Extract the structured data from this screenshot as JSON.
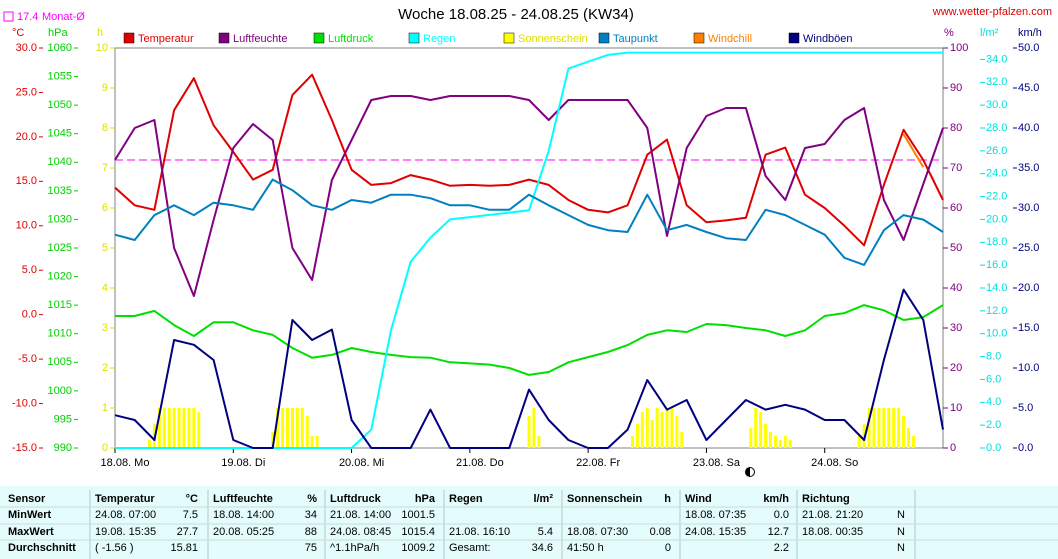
{
  "chart_data": {
    "type": "line",
    "title": "Woche 18.08.25 - 24.08.25 (KW34)",
    "source": "www.wetter-pfalzen.com",
    "average": {
      "value": 17.4,
      "label": "Monat-Ø",
      "color": "#ff00ff",
      "axis": "temp"
    },
    "xlim": [
      0,
      168
    ],
    "xticks": [
      {
        "value": 0,
        "label": "18.08. Mo"
      },
      {
        "value": 24,
        "label": "19.08. Di"
      },
      {
        "value": 48,
        "label": "20.08. Mi"
      },
      {
        "value": 72,
        "label": "21.08. Do"
      },
      {
        "value": 96,
        "label": "22.08. Fr"
      },
      {
        "value": 120,
        "label": "23.08. Sa"
      },
      {
        "value": 144,
        "label": "24.08. So"
      }
    ],
    "x": [
      0,
      4,
      8,
      12,
      16,
      20,
      24,
      28,
      32,
      36,
      40,
      44,
      48,
      52,
      56,
      60,
      64,
      68,
      72,
      76,
      80,
      84,
      88,
      92,
      96,
      100,
      104,
      108,
      112,
      116,
      120,
      124,
      128,
      132,
      136,
      140,
      144,
      148,
      152,
      156,
      160,
      164,
      168
    ],
    "axes": {
      "temp": {
        "label": "°C",
        "color": "#e00000",
        "lim": [
          -15,
          30
        ],
        "ticks": [
          {
            "value": -15,
            "label": "-15.0"
          },
          {
            "value": -10,
            "label": "-10.0"
          },
          {
            "value": -5,
            "label": "-5.0"
          },
          {
            "value": 0,
            "label": "0.0"
          },
          {
            "value": 5,
            "label": "5.0"
          },
          {
            "value": 10,
            "label": "10.0"
          },
          {
            "value": 15,
            "label": "15.0"
          },
          {
            "value": 20,
            "label": "20.0"
          },
          {
            "value": 25,
            "label": "25.0"
          },
          {
            "value": 30,
            "label": "30.0"
          }
        ]
      },
      "hpa": {
        "label": "hPa",
        "color": "#00d000",
        "lim": [
          990,
          1060
        ],
        "ticks": [
          990,
          995,
          1000,
          1005,
          1010,
          1015,
          1020,
          1025,
          1030,
          1035,
          1040,
          1045,
          1050,
          1055,
          1060
        ]
      },
      "hours": {
        "label": "h",
        "color": "#e0e000",
        "lim": [
          0,
          10
        ],
        "ticks": [
          0,
          1,
          2,
          3,
          4,
          5,
          6,
          7,
          8,
          9,
          10
        ]
      },
      "pct": {
        "label": "%",
        "color": "#800080",
        "lim": [
          0,
          100
        ],
        "ticks": [
          0,
          10,
          20,
          30,
          40,
          50,
          60,
          70,
          80,
          90,
          100
        ]
      },
      "rain": {
        "label": "l/m²",
        "color": "#00e0e0",
        "lim": [
          0,
          35
        ],
        "ticks": [
          {
            "value": 0,
            "label": "0.0"
          },
          {
            "value": 2,
            "label": "2.0"
          },
          {
            "value": 4,
            "label": "4.0"
          },
          {
            "value": 6,
            "label": "6.0"
          },
          {
            "value": 8,
            "label": "8.0"
          },
          {
            "value": 10,
            "label": "10.0"
          },
          {
            "value": 12,
            "label": "12.0"
          },
          {
            "value": 14,
            "label": "14.0"
          },
          {
            "value": 16,
            "label": "16.0"
          },
          {
            "value": 18,
            "label": "18.0"
          },
          {
            "value": 20,
            "label": "20.0"
          },
          {
            "value": 22,
            "label": "22.0"
          },
          {
            "value": 24,
            "label": "24.0"
          },
          {
            "value": 26,
            "label": "26.0"
          },
          {
            "value": 28,
            "label": "28.0"
          },
          {
            "value": 30,
            "label": "30.0"
          },
          {
            "value": 32,
            "label": "32.0"
          },
          {
            "value": 34,
            "label": "34.0"
          }
        ]
      },
      "kmh": {
        "label": "km/h",
        "color": "#000080",
        "lim": [
          0,
          50
        ],
        "ticks": [
          {
            "value": 0,
            "label": "0.0"
          },
          {
            "value": 5,
            "label": "5.0"
          },
          {
            "value": 10,
            "label": "10.0"
          },
          {
            "value": 15,
            "label": "15.0"
          },
          {
            "value": 20,
            "label": "20.0"
          },
          {
            "value": 25,
            "label": "25.0"
          },
          {
            "value": 30,
            "label": "30.0"
          },
          {
            "value": 35,
            "label": "35.0"
          },
          {
            "value": 40,
            "label": "40.0"
          },
          {
            "value": 45,
            "label": "45.0"
          },
          {
            "value": 50,
            "label": "50.0"
          }
        ]
      }
    },
    "series": [
      {
        "name": "Temperatur",
        "color": "#e00000",
        "axis": "temp",
        "kind": "line",
        "values": [
          14.3,
          12.3,
          11.8,
          23,
          26.6,
          21.3,
          18.3,
          15.2,
          16.3,
          24.7,
          27,
          21.9,
          16.3,
          14.6,
          14.8,
          15.7,
          15.2,
          14.5,
          14.6,
          14.5,
          14.6,
          15.2,
          14.6,
          12.9,
          11.8,
          11.5,
          12.3,
          18,
          19.7,
          12.3,
          10.4,
          10.6,
          10.9,
          18,
          18.8,
          13.5,
          12,
          10,
          7.8,
          14.6,
          20.8,
          17.4,
          12.9
        ]
      },
      {
        "name": "Luftfeuchte",
        "color": "#800080",
        "axis": "pct",
        "kind": "line",
        "values": [
          72,
          80,
          82,
          50,
          38,
          57,
          75,
          81,
          77,
          50,
          42,
          67,
          77,
          87,
          88,
          88,
          87,
          88,
          88,
          88,
          88,
          87,
          82,
          87,
          87,
          87,
          87,
          80,
          53,
          75,
          83,
          85,
          85,
          68,
          62,
          75,
          76,
          82,
          85,
          62,
          52,
          66,
          80
        ]
      },
      {
        "name": "Luftdruck",
        "color": "#00e000",
        "axis": "hpa",
        "kind": "line",
        "values": [
          1013.1,
          1013.1,
          1014,
          1011.5,
          1009.6,
          1012,
          1012,
          1010.6,
          1009.8,
          1007.5,
          1005.8,
          1006.3,
          1007.5,
          1006.8,
          1006.3,
          1005.9,
          1005.8,
          1005,
          1004.8,
          1004.6,
          1004,
          1002.8,
          1003.3,
          1005,
          1005.9,
          1006.8,
          1008,
          1009.8,
          1010.6,
          1010.3,
          1011.7,
          1011.5,
          1011,
          1010.6,
          1009.6,
          1010.6,
          1013.1,
          1013.6,
          1015,
          1014.1,
          1012.4,
          1012.9,
          1015
        ]
      },
      {
        "name": "Regen",
        "color": "#00ffff",
        "axis": "rain",
        "kind": "line",
        "values": [
          0,
          0,
          0,
          0,
          0,
          0,
          0,
          0,
          0,
          0,
          0,
          0,
          0,
          1.6,
          10.3,
          16.3,
          18.4,
          20,
          20.2,
          20.4,
          20.6,
          20.8,
          26,
          33.2,
          33.8,
          34.4,
          34.6,
          34.6,
          34.6,
          34.6,
          34.6,
          34.6,
          34.6,
          34.6,
          34.6,
          34.6,
          34.6,
          34.6,
          34.6,
          34.6,
          34.6,
          34.6,
          34.6
        ]
      },
      {
        "name": "Sonnenschein",
        "color": "#ffff00",
        "axis": "hours",
        "kind": "bar",
        "x": [
          7,
          8,
          9,
          10,
          11,
          12,
          13,
          14,
          15,
          16,
          17,
          32,
          33,
          34,
          35,
          36,
          37,
          38,
          39,
          40,
          41,
          84,
          85,
          86,
          105,
          106,
          107,
          108,
          109,
          110,
          111,
          112,
          113,
          114,
          115,
          129,
          130,
          131,
          132,
          133,
          134,
          135,
          136,
          137,
          151,
          152,
          153,
          154,
          155,
          156,
          157,
          158,
          159,
          160,
          161,
          162
        ],
        "values": [
          0.2,
          0.6,
          1,
          1,
          1,
          1,
          1,
          1,
          1,
          1,
          0.9,
          0.4,
          1,
          1,
          1,
          1,
          1,
          1,
          0.8,
          0.3,
          0.3,
          0.8,
          1,
          0.3,
          0.3,
          0.6,
          0.9,
          1,
          0.7,
          1,
          0.9,
          1,
          1,
          0.8,
          0.4,
          0.5,
          1,
          0.9,
          0.6,
          0.4,
          0.3,
          0.2,
          0.3,
          0.2,
          0.3,
          0.6,
          1,
          1,
          1,
          1,
          1,
          1,
          1,
          0.8,
          0.5,
          0.3
        ]
      },
      {
        "name": "Taupunkt",
        "color": "#0080c0",
        "axis": "temp",
        "kind": "line",
        "values": [
          9,
          8.4,
          11.2,
          12.3,
          11.2,
          12.6,
          12.3,
          11.8,
          15.2,
          14,
          12.3,
          11.8,
          12.9,
          12.6,
          13.5,
          13.5,
          13.1,
          12.3,
          12.3,
          11.8,
          11.8,
          13.5,
          12.3,
          11.2,
          10.1,
          9.5,
          9.3,
          13.5,
          9.5,
          10.1,
          9.3,
          8.6,
          8.4,
          11.8,
          11.2,
          10.1,
          9,
          6.4,
          5.6,
          9.5,
          11.2,
          10.7,
          9.3
        ]
      },
      {
        "name": "Windchill",
        "color": "#ff8000",
        "axis": "temp",
        "kind": "line",
        "values": [
          null,
          null,
          null,
          null,
          null,
          null,
          null,
          null,
          null,
          null,
          null,
          null,
          null,
          null,
          null,
          null,
          null,
          null,
          null,
          null,
          null,
          null,
          null,
          null,
          null,
          null,
          null,
          null,
          null,
          null,
          null,
          null,
          null,
          null,
          null,
          null,
          null,
          null,
          null,
          null,
          20.3,
          16.6,
          null
        ]
      },
      {
        "name": "Windböen",
        "color": "#000080",
        "axis": "kmh",
        "kind": "line",
        "values": [
          4.1,
          3.5,
          1,
          13.5,
          12.9,
          11,
          1,
          0,
          0,
          16,
          13.5,
          14.8,
          3.5,
          0,
          0,
          0,
          4.8,
          0,
          0,
          0,
          0,
          7.3,
          3.5,
          1,
          0,
          0,
          2.3,
          8.5,
          4.8,
          6,
          1,
          3.5,
          6,
          4.8,
          5.4,
          4.8,
          3.5,
          3.5,
          1,
          11,
          19.8,
          16,
          2.3
        ]
      }
    ]
  },
  "table": {
    "header": [
      [
        "Sensor"
      ],
      [
        "Temperatur",
        "°C"
      ],
      [
        "Luftfeuchte",
        "%"
      ],
      [
        "Luftdruck",
        "hPa"
      ],
      [
        "Regen",
        "l/m²"
      ],
      [
        "Sonnenschein",
        "h"
      ],
      [
        "Wind",
        "km/h"
      ],
      [
        "Richtung"
      ]
    ],
    "rows": [
      {
        "label": "MinWert",
        "cells": [
          [
            "24.08. 07:00",
            "7.5"
          ],
          [
            "18.08. 14:00",
            "34"
          ],
          [
            "21.08. 14:00",
            "1001.5"
          ],
          [
            null,
            null
          ],
          [
            null,
            null
          ],
          [
            "18.08. 07:35",
            "0.0"
          ],
          [
            "21.08. 21:20",
            "N"
          ]
        ]
      },
      {
        "label": "MaxWert",
        "cells": [
          [
            "19.08. 15:35",
            "27.7"
          ],
          [
            "20.08. 05:25",
            "88"
          ],
          [
            "24.08. 08:45",
            "1015.4"
          ],
          [
            "21.08. 16:10",
            "5.4"
          ],
          [
            "18.08. 07:30",
            "0.08"
          ],
          [
            "24.08. 15:35",
            "12.7"
          ],
          [
            "18.08. 00:35",
            "N"
          ]
        ]
      },
      {
        "label": "Durchschnitt",
        "cells": [
          [
            "( -1.56 )",
            "15.81"
          ],
          [
            null,
            "75"
          ],
          [
            "^1.1hPa/h",
            "1009.2"
          ],
          [
            "Gesamt:",
            "34.6"
          ],
          [
            "41:50 h",
            "0"
          ],
          [
            null,
            "2.2"
          ],
          [
            null,
            "N"
          ]
        ]
      }
    ]
  }
}
